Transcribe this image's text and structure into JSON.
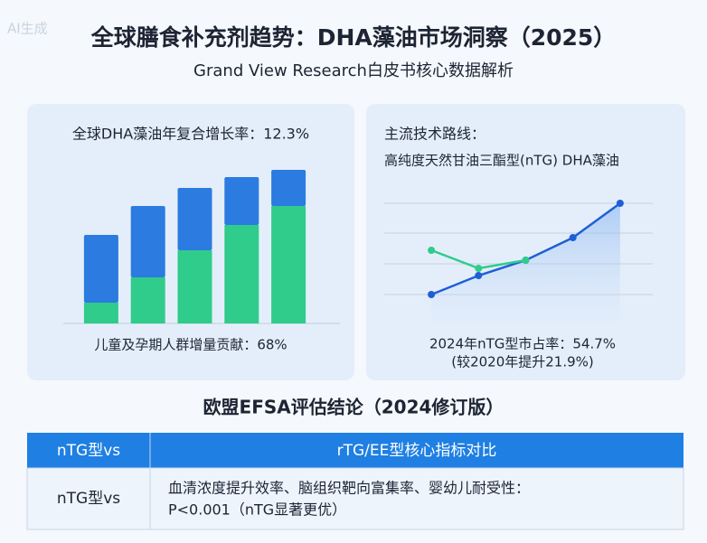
{
  "watermark": "AI生成",
  "header": {
    "title": "全球膳食补充剂趋势：DHA藻油市场洞察（2025）",
    "subtitle": "Grand View Research白皮书核心数据解析"
  },
  "chart_data": [
    {
      "type": "bar",
      "stacked": true,
      "title": "全球DHA藻油年复合增长率：12.3%",
      "caption": "儿童及孕期人群增量贡献：68%",
      "categories": [
        null,
        null,
        null,
        null,
        null
      ],
      "ylim": [
        0,
        180
      ],
      "series": [
        {
          "color": "#2fcc8b",
          "values": [
            23,
            51,
            81,
            109,
            130
          ]
        },
        {
          "color": "#2b7be0",
          "values": [
            75,
            79,
            69,
            53,
            40
          ]
        }
      ]
    },
    {
      "type": "line",
      "title": "主流技术路线：",
      "subtitle": "高纯度天然甘油三酯型(nTG) DHA藻油",
      "annotations": [
        "2024年nTG型市占率：54.7%",
        "(较2020年提升21.9%)"
      ],
      "categories": [
        null,
        null,
        null,
        null,
        null
      ],
      "ylim": [
        0,
        160
      ],
      "grid": true,
      "series": [
        {
          "color": "#1f5fd6",
          "area": true,
          "values": [
            32,
            53,
            70,
            95,
            133
          ]
        },
        {
          "color": "#2fcc8b",
          "values": [
            81,
            61,
            70,
            null,
            null
          ]
        }
      ]
    }
  ],
  "section_title": "欧盟EFSA评估结论（2024修订版）",
  "table": {
    "header": [
      "nTG型vs",
      "rTG/EE型核心指标对比"
    ],
    "rows": [
      [
        "nTG型vs",
        [
          "血清浓度提升效率、脑组织靶向富集率、婴幼儿耐受性：",
          "P<0.001（nTG显著更优）"
        ]
      ]
    ]
  }
}
